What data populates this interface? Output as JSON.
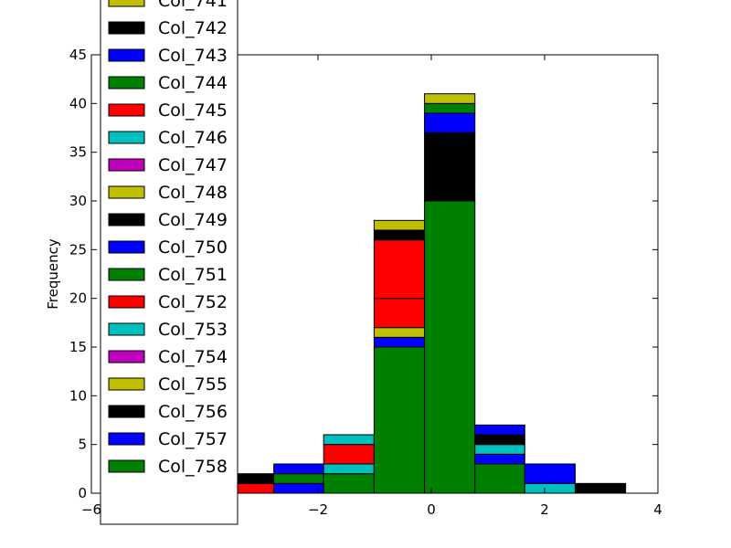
{
  "chart_data": {
    "type": "histogram-stacked",
    "ylabel": "Frequency",
    "xlabel": "",
    "xlim": [
      -6,
      4
    ],
    "ylim": [
      0,
      45
    ],
    "x_ticks": [
      -6,
      -4,
      -2,
      0,
      2,
      4
    ],
    "x_tick_labels": [
      "−6",
      "−4",
      "−2",
      "0",
      "2",
      "4"
    ],
    "y_ticks": [
      0,
      5,
      10,
      15,
      20,
      25,
      30,
      35,
      40,
      45
    ],
    "y_tick_labels": [
      "0",
      "5",
      "10",
      "15",
      "20",
      "25",
      "30",
      "35",
      "40",
      "45"
    ],
    "grid": false,
    "legend_position": "upper-left",
    "bin_edges": [
      -5.45,
      -4.56,
      -3.67,
      -2.78,
      -1.9,
      -1.01,
      -0.12,
      0.77,
      1.65,
      2.54,
      3.43
    ],
    "stacked_segments": [
      {
        "series": "Col_746",
        "bin": 0,
        "from": 0,
        "to": 1,
        "color": "#00bfbf"
      },
      {
        "series": "Col_745",
        "bin": 1,
        "from": 0,
        "to": 1,
        "color": "#ff0000"
      },
      {
        "series": "Col_745",
        "bin": 2,
        "from": 0,
        "to": 1,
        "color": "#ff0000"
      },
      {
        "series": "Col_742",
        "bin": 2,
        "from": 1,
        "to": 2,
        "color": "#000000"
      },
      {
        "series": "Col_743",
        "bin": 3,
        "from": 0,
        "to": 1,
        "color": "#0000ff"
      },
      {
        "series": "Col_744",
        "bin": 3,
        "from": 1,
        "to": 2,
        "color": "#008000"
      },
      {
        "series": "Col_743",
        "bin": 3,
        "from": 2,
        "to": 3,
        "color": "#0000ff"
      },
      {
        "series": "Col_744",
        "bin": 4,
        "from": 0,
        "to": 2,
        "color": "#008000"
      },
      {
        "series": "Col_746",
        "bin": 4,
        "from": 2,
        "to": 3,
        "color": "#00bfbf"
      },
      {
        "series": "Col_745",
        "bin": 4,
        "from": 3,
        "to": 5,
        "color": "#ff0000"
      },
      {
        "series": "Col_746",
        "bin": 4,
        "from": 5,
        "to": 6,
        "color": "#00bfbf"
      },
      {
        "series": "Col_744",
        "bin": 5,
        "from": 0,
        "to": 15,
        "color": "#008000"
      },
      {
        "series": "Col_743",
        "bin": 5,
        "from": 15,
        "to": 16,
        "color": "#0000ff"
      },
      {
        "series": "Col_741",
        "bin": 5,
        "from": 16,
        "to": 17,
        "color": "#bfbf00"
      },
      {
        "series": "Col_745",
        "bin": 5,
        "from": 17,
        "to": 20,
        "color": "#ff0000"
      },
      {
        "series": "Col_752",
        "bin": 5,
        "from": 20,
        "to": 26,
        "color": "#ff0000"
      },
      {
        "series": "Col_749",
        "bin": 5,
        "from": 26,
        "to": 27,
        "color": "#000000"
      },
      {
        "series": "Col_748",
        "bin": 5,
        "from": 27,
        "to": 28,
        "color": "#bfbf00"
      },
      {
        "series": "Col_744",
        "bin": 6,
        "from": 0,
        "to": 30,
        "color": "#008000"
      },
      {
        "series": "Col_742",
        "bin": 6,
        "from": 30,
        "to": 37,
        "color": "#000000"
      },
      {
        "series": "Col_743",
        "bin": 6,
        "from": 37,
        "to": 39,
        "color": "#0000ff"
      },
      {
        "series": "Col_744",
        "bin": 6,
        "from": 39,
        "to": 40,
        "color": "#008000"
      },
      {
        "series": "Col_741",
        "bin": 6,
        "from": 40,
        "to": 41,
        "color": "#bfbf00"
      },
      {
        "series": "Col_744",
        "bin": 7,
        "from": 0,
        "to": 3,
        "color": "#008000"
      },
      {
        "series": "Col_743",
        "bin": 7,
        "from": 3,
        "to": 4,
        "color": "#0000ff"
      },
      {
        "series": "Col_746",
        "bin": 7,
        "from": 4,
        "to": 5,
        "color": "#00bfbf"
      },
      {
        "series": "Col_742",
        "bin": 7,
        "from": 5,
        "to": 6,
        "color": "#000000"
      },
      {
        "series": "Col_743",
        "bin": 7,
        "from": 6,
        "to": 7,
        "color": "#0000ff"
      },
      {
        "series": "Col_746",
        "bin": 8,
        "from": 0,
        "to": 1,
        "color": "#00bfbf"
      },
      {
        "series": "Col_743",
        "bin": 8,
        "from": 1,
        "to": 3,
        "color": "#0000ff"
      },
      {
        "series": "Col_742",
        "bin": 9,
        "from": 0,
        "to": 1,
        "color": "#000000"
      }
    ],
    "legend": [
      {
        "label": "Col_741",
        "color": "#bfbf00"
      },
      {
        "label": "Col_742",
        "color": "#000000"
      },
      {
        "label": "Col_743",
        "color": "#0000ff"
      },
      {
        "label": "Col_744",
        "color": "#008000"
      },
      {
        "label": "Col_745",
        "color": "#ff0000"
      },
      {
        "label": "Col_746",
        "color": "#00bfbf"
      },
      {
        "label": "Col_747",
        "color": "#bf00bf"
      },
      {
        "label": "Col_748",
        "color": "#bfbf00"
      },
      {
        "label": "Col_749",
        "color": "#000000"
      },
      {
        "label": "Col_750",
        "color": "#0000ff"
      },
      {
        "label": "Col_751",
        "color": "#008000"
      },
      {
        "label": "Col_752",
        "color": "#ff0000"
      },
      {
        "label": "Col_753",
        "color": "#00bfbf"
      },
      {
        "label": "Col_754",
        "color": "#bf00bf"
      },
      {
        "label": "Col_755",
        "color": "#bfbf00"
      },
      {
        "label": "Col_756",
        "color": "#000000"
      },
      {
        "label": "Col_757",
        "color": "#0000ff"
      },
      {
        "label": "Col_758",
        "color": "#008000"
      }
    ]
  }
}
